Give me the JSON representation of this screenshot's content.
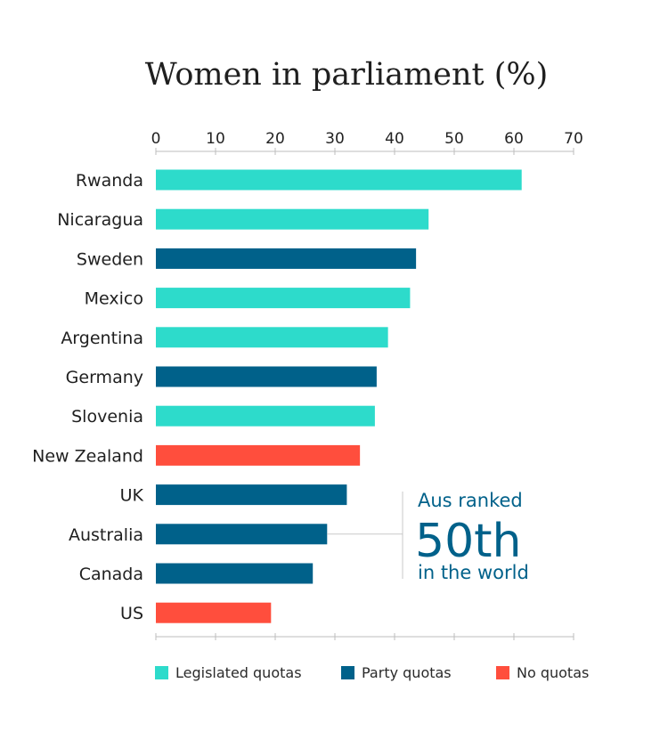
{
  "chart_data": {
    "type": "bar",
    "orientation": "horizontal",
    "title": "Women in parliament (%)",
    "xlim": [
      0,
      70
    ],
    "xticks": [
      0,
      10,
      20,
      30,
      40,
      50,
      60,
      70
    ],
    "categories": [
      "Rwanda",
      "Nicaragua",
      "Sweden",
      "Mexico",
      "Argentina",
      "Germany",
      "Slovenia",
      "New Zealand",
      "UK",
      "Australia",
      "Canada",
      "US"
    ],
    "values": [
      61.3,
      45.7,
      43.6,
      42.6,
      38.9,
      37.0,
      36.7,
      34.2,
      32.0,
      28.7,
      26.3,
      19.3
    ],
    "groups": [
      "legislated",
      "legislated",
      "party",
      "legislated",
      "legislated",
      "party",
      "legislated",
      "none",
      "party",
      "party",
      "party",
      "none"
    ],
    "legend": [
      {
        "key": "legislated",
        "label": "Legislated quotas",
        "color": "#2ddbcb"
      },
      {
        "key": "party",
        "label": "Party quotas",
        "color": "#00618a"
      },
      {
        "key": "none",
        "label": "No quotas",
        "color": "#ff4e3d"
      }
    ],
    "legend_position": "bottom",
    "grid": false,
    "annotation": {
      "target": "Australia",
      "line1": "Aus ranked",
      "line2": "50th",
      "line3": "in the world",
      "color": "#00618a"
    }
  }
}
